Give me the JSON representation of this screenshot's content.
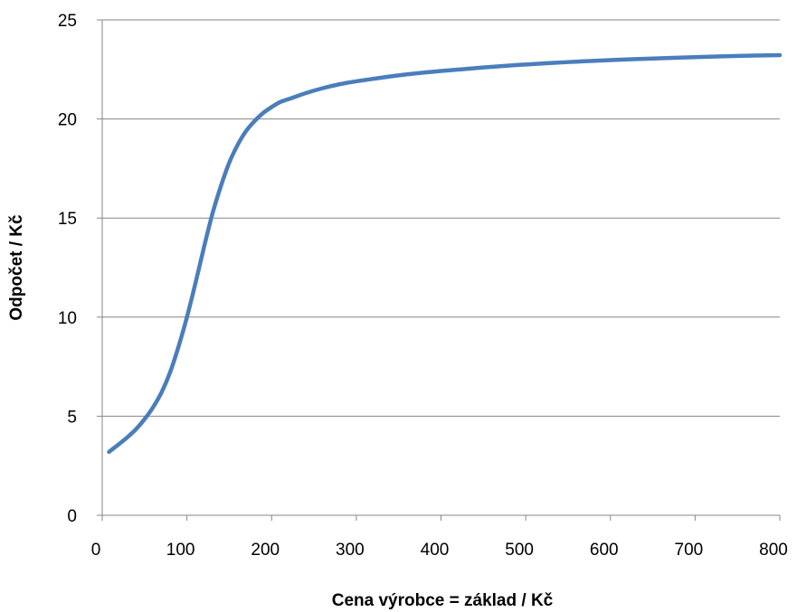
{
  "chart_data": {
    "type": "line",
    "title": "",
    "xlabel": "Cena výrobce = základ / Kč",
    "ylabel": "Odpočet / Kč",
    "xlim": [
      0,
      800
    ],
    "ylim": [
      0,
      25
    ],
    "x_ticks": [
      "0",
      "100",
      "200",
      "300",
      "400",
      "500",
      "600",
      "700",
      "800"
    ],
    "y_ticks": [
      "0",
      "5",
      "10",
      "15",
      "20",
      "25"
    ],
    "grid": "horizontal",
    "legend": "none",
    "series": [
      {
        "color": "#4a7ebb",
        "x": [
          8,
          20,
          30,
          40,
          50,
          60,
          70,
          80,
          90,
          100,
          110,
          120,
          130,
          140,
          150,
          160,
          170,
          180,
          190,
          200,
          210,
          220,
          240,
          260,
          280,
          300,
          350,
          400,
          450,
          500,
          550,
          600,
          650,
          700,
          750,
          800
        ],
        "y": [
          3.2,
          3.6,
          3.95,
          4.35,
          4.85,
          5.45,
          6.2,
          7.2,
          8.5,
          10.0,
          11.7,
          13.5,
          15.2,
          16.6,
          17.8,
          18.7,
          19.4,
          19.9,
          20.3,
          20.6,
          20.85,
          21.0,
          21.3,
          21.55,
          21.75,
          21.9,
          22.2,
          22.42,
          22.6,
          22.75,
          22.87,
          22.97,
          23.05,
          23.12,
          23.18,
          23.22
        ]
      }
    ]
  }
}
